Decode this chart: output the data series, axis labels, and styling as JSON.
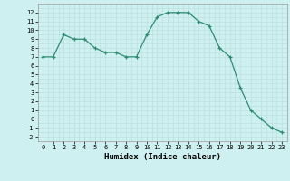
{
  "x": [
    0,
    1,
    2,
    3,
    4,
    5,
    6,
    7,
    8,
    9,
    10,
    11,
    12,
    13,
    14,
    15,
    16,
    17,
    18,
    19,
    20,
    21,
    22,
    23
  ],
  "y": [
    7,
    7,
    9.5,
    9,
    9,
    8,
    7.5,
    7.5,
    7,
    7,
    9.5,
    11.5,
    12,
    12,
    12,
    11,
    10.5,
    8,
    7,
    3.5,
    1,
    0,
    -1,
    -1.5
  ],
  "line_color": "#2e8b72",
  "bg_color": "#cef0f0",
  "grid_color_major": "#b8dede",
  "grid_color_minor": "#b8dede",
  "xlabel": "Humidex (Indice chaleur)",
  "ylim": [
    -2.5,
    13
  ],
  "xlim": [
    -0.5,
    23.5
  ],
  "yticks": [
    -2,
    -1,
    0,
    1,
    2,
    3,
    4,
    5,
    6,
    7,
    8,
    9,
    10,
    11,
    12
  ],
  "xticks": [
    0,
    1,
    2,
    3,
    4,
    5,
    6,
    7,
    8,
    9,
    10,
    11,
    12,
    13,
    14,
    15,
    16,
    17,
    18,
    19,
    20,
    21,
    22,
    23
  ],
  "tick_fontsize": 5,
  "xlabel_fontsize": 6.5
}
